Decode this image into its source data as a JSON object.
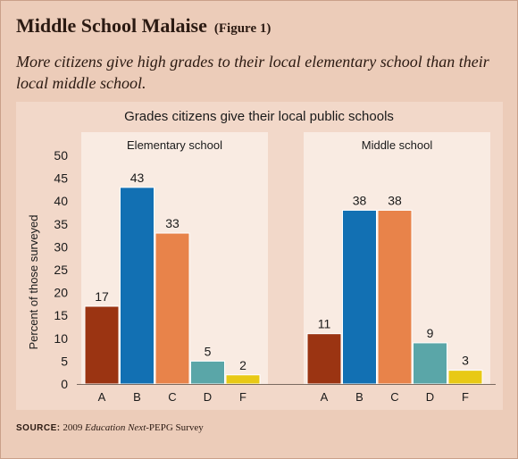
{
  "header": {
    "title": "Middle School Malaise",
    "figure_label": "(Figure 1)",
    "subtitle": "More citizens give high grades to their local elementary school than their local middle school."
  },
  "source": {
    "label": "SOURCE:",
    "year": "2009",
    "publication": "Education Next",
    "suffix": "-PEPG Survey"
  },
  "chart_data": {
    "type": "bar",
    "title": "Grades citizens give their local public schools",
    "ylabel": "Percent of those surveyed",
    "ylim": [
      0,
      50
    ],
    "yticks": [
      0,
      5,
      10,
      15,
      20,
      25,
      30,
      35,
      40,
      45,
      50
    ],
    "categories": [
      "A",
      "B",
      "C",
      "D",
      "F"
    ],
    "colors": [
      "#9b3412",
      "#1270b3",
      "#e8834a",
      "#5aa6a8",
      "#e8c915"
    ],
    "panels": [
      {
        "name": "Elementary school",
        "values": [
          17,
          43,
          33,
          5,
          2
        ]
      },
      {
        "name": "Middle school",
        "values": [
          11,
          38,
          38,
          9,
          3
        ]
      }
    ]
  }
}
